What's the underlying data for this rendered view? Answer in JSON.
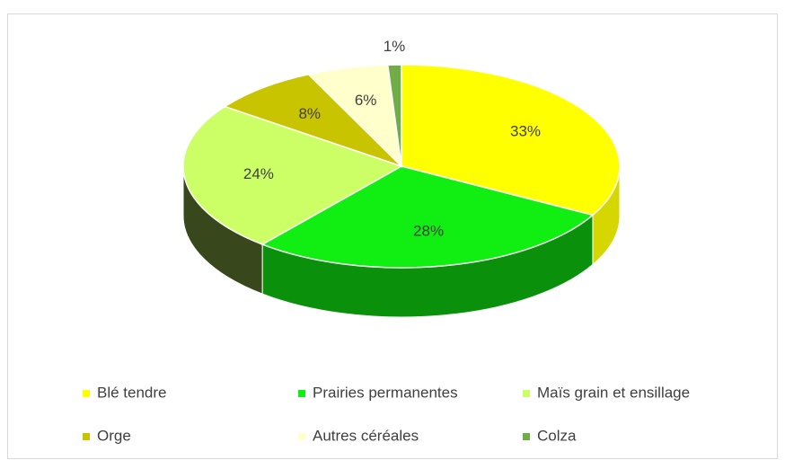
{
  "chart_data": {
    "type": "pie",
    "categories": [
      "Blé tendre",
      "Prairies permanentes",
      "Maïs grain et ensillage",
      "Orge",
      "Autres céréales",
      "Colza"
    ],
    "values": [
      33,
      28,
      24,
      8,
      6,
      1
    ],
    "value_labels": [
      "33%",
      "28%",
      "24%",
      "8%",
      "6%",
      "1%"
    ],
    "colors": [
      "#ffff00",
      "#11ee11",
      "#ccff66",
      "#c9c400",
      "#ffffcc",
      "#70ad47"
    ],
    "legend": "bottom"
  }
}
